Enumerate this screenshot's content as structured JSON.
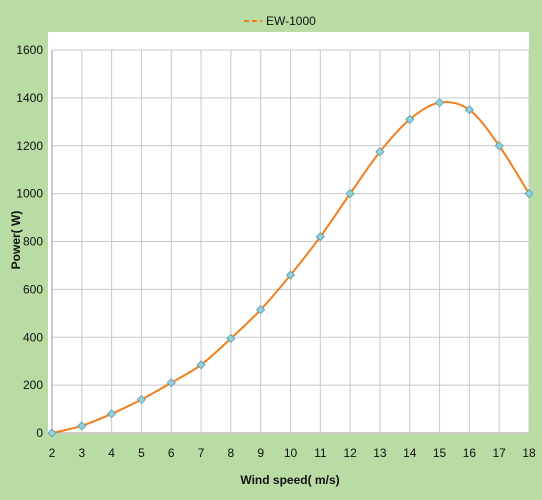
{
  "chart_data": {
    "type": "line",
    "title": "",
    "xlabel": "Wind speed( m/s)",
    "ylabel": "Power( W)",
    "xlim": [
      2,
      18
    ],
    "ylim": [
      0,
      1600
    ],
    "xticks": [
      "2",
      "3",
      "4",
      "5",
      "6",
      "7",
      "8",
      "9",
      "10",
      "11",
      "12",
      "13",
      "14",
      "15",
      "16",
      "17",
      "18"
    ],
    "yticks": [
      "0",
      "200",
      "400",
      "600",
      "800",
      "1000",
      "1200",
      "1400",
      "1600"
    ],
    "grid": true,
    "legend_position": "top-center",
    "series": [
      {
        "name": "EW-1000",
        "color": "#f07f1e",
        "marker_color": "#8fd1dc",
        "x": [
          2,
          3,
          4,
          5,
          6,
          7,
          8,
          9,
          10,
          11,
          12,
          13,
          14,
          15,
          16,
          17,
          18
        ],
        "y": [
          0,
          30,
          80,
          140,
          210,
          285,
          395,
          515,
          660,
          820,
          1000,
          1175,
          1310,
          1380,
          1350,
          1200,
          1000
        ]
      }
    ]
  }
}
